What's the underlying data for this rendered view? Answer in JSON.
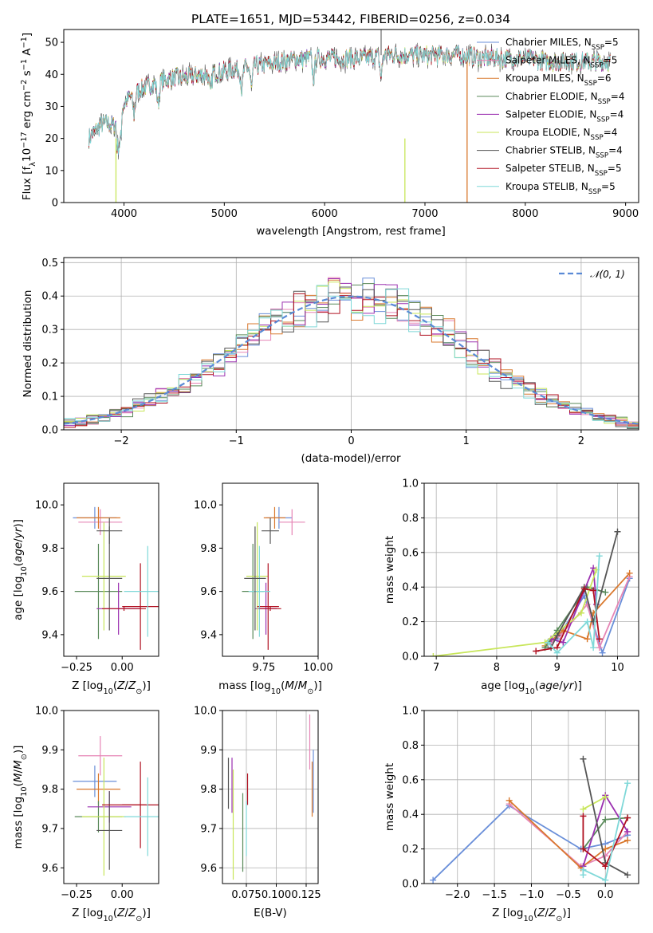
{
  "figure_title": "PLATE=1651, MJD=53442, FIBERID=0256, z=0.034",
  "colors": {
    "Chabrier MILES": "#6a8fd9",
    "Salpeter MILES": "#e685b5",
    "Kroupa MILES": "#d9782d",
    "Chabrier ELODIE": "#5a8a5a",
    "Salpeter ELODIE": "#9b30b0",
    "Kroupa ELODIE": "#c8e65a",
    "Chabrier STELIB": "#555555",
    "Salpeter STELIB": "#b01020",
    "Kroupa STELIB": "#7fd8d8",
    "normal_curve": "#5a8ad6",
    "grid": "#b0b0b0"
  },
  "chart_data": [
    {
      "id": "spectrum",
      "type": "line",
      "title": "PLATE=1651, MJD=53442, FIBERID=0256, z=0.034",
      "xlabel": "wavelength [Angstrom, rest frame]",
      "ylabel": "Flux [fλ10⁻¹⁷ erg cm⁻² s⁻¹ A⁻¹]",
      "xlim": [
        3400,
        9130
      ],
      "ylim": [
        0,
        54
      ],
      "xticks": [
        4000,
        5000,
        6000,
        7000,
        8000,
        9000
      ],
      "yticks": [
        0,
        10,
        20,
        30,
        40,
        50
      ],
      "grid": false,
      "legend_position": "top-right",
      "continuum": {
        "x": [
          3650,
          3700,
          3800,
          3900,
          3950,
          4000,
          4100,
          4200,
          4300,
          4400,
          4500,
          4600,
          4800,
          5000,
          5200,
          5400,
          5600,
          5800,
          6000,
          6200,
          6400,
          6600,
          6800,
          7000,
          7200,
          7400,
          7600,
          7800,
          8000,
          8200,
          8400,
          8600,
          8850
        ],
        "y": [
          20,
          22,
          25,
          24,
          26,
          31,
          34,
          36,
          37,
          38,
          39,
          39,
          40,
          41,
          42,
          43,
          44,
          45,
          45,
          45,
          45,
          46,
          46,
          46,
          46,
          46,
          45,
          45,
          45,
          44,
          44,
          44,
          44
        ]
      },
      "series": [
        {
          "name": "Chabrier MILES, N_SSP=5",
          "label_main": "Chabrier MILES, N",
          "label_sub": "SSP",
          "label_end": "=5"
        },
        {
          "name": "Salpeter MILES, N_SSP=5",
          "label_main": "Salpeter MILES, N",
          "label_sub": "SSP",
          "label_end": "=5"
        },
        {
          "name": "Kroupa MILES, N_SSP=6",
          "label_main": "Kroupa MILES, N",
          "label_sub": "SSP",
          "label_end": "=6"
        },
        {
          "name": "Chabrier ELODIE, N_SSP=4",
          "label_main": "Chabrier ELODIE, N",
          "label_sub": "SSP",
          "label_end": "=4"
        },
        {
          "name": "Salpeter ELODIE, N_SSP=4",
          "label_main": "Salpeter ELODIE, N",
          "label_sub": "SSP",
          "label_end": "=4"
        },
        {
          "name": "Kroupa ELODIE, N_SSP=4",
          "label_main": "Kroupa ELODIE, N",
          "label_sub": "SSP",
          "label_end": "=4"
        },
        {
          "name": "Chabrier STELIB, N_SSP=4",
          "label_main": "Chabrier STELIB, N",
          "label_sub": "SSP",
          "label_end": "=4"
        },
        {
          "name": "Salpeter STELIB, N_SSP=5",
          "label_main": "Salpeter STELIB, N",
          "label_sub": "SSP",
          "label_end": "=5"
        },
        {
          "name": "Kroupa STELIB, N_SSP=5",
          "label_main": "Kroupa STELIB, N",
          "label_sub": "SSP",
          "label_end": "=5"
        }
      ],
      "drops": [
        {
          "series": "Kroupa ELODIE",
          "x": 3920
        },
        {
          "series": "Kroupa ELODIE",
          "x": 6800
        },
        {
          "series": "Kroupa MILES",
          "x": 7420
        }
      ]
    },
    {
      "id": "residuals",
      "type": "histogram",
      "xlabel": "(data-model)/error",
      "ylabel": "Normed distribution",
      "xlim": [
        -2.5,
        2.5
      ],
      "ylim": [
        0,
        0.515
      ],
      "xticks": [
        -2,
        -1,
        0,
        1,
        2
      ],
      "yticks": [
        0.0,
        0.1,
        0.2,
        0.3,
        0.4,
        0.5
      ],
      "grid": true,
      "legend": "𝒩(0, 1)",
      "legend_position": "top-right",
      "bin_width": 0.1,
      "normal_curve": {
        "mean": 0,
        "sigma": 1
      }
    },
    {
      "id": "age-vs-Z",
      "type": "scatter-errorbar",
      "xlabel": "Z [log₁₀(Z/Z⊙)]",
      "ylabel": "age  [log₁₀(age/yr)]",
      "xlim": [
        -0.32,
        0.2
      ],
      "ylim": [
        9.3,
        10.1
      ],
      "xticks": [
        -0.25,
        0.0
      ],
      "yticks": [
        9.4,
        9.6,
        9.8,
        10.0
      ],
      "points": [
        {
          "s": "Chabrier MILES",
          "x": -0.15,
          "xe": 0.12,
          "y": 9.94,
          "ye": 0.05
        },
        {
          "s": "Salpeter MILES",
          "x": -0.12,
          "xe": 0.12,
          "y": 9.92,
          "ye": 0.06
        },
        {
          "s": "Kroupa MILES",
          "x": -0.13,
          "xe": 0.12,
          "y": 9.94,
          "ye": 0.05
        },
        {
          "s": "Chabrier ELODIE",
          "x": -0.13,
          "xe": 0.13,
          "y": 9.6,
          "ye": 0.22
        },
        {
          "s": "Salpeter ELODIE",
          "x": -0.02,
          "xe": 0.12,
          "y": 9.52,
          "ye": 0.12
        },
        {
          "s": "Kroupa ELODIE",
          "x": -0.1,
          "xe": 0.12,
          "y": 9.67,
          "ye": 0.25
        },
        {
          "s": "Chabrier STELIB",
          "x": -0.07,
          "xe": 0.07,
          "y": 9.88,
          "ye": 0.06
        },
        {
          "s": "Salpeter STELIB",
          "x": 0.1,
          "xe": 0.1,
          "y": 9.53,
          "ye": 0.2
        },
        {
          "s": "Kroupa STELIB",
          "x": 0.14,
          "xe": 0.13,
          "y": 9.6,
          "ye": 0.21
        },
        {
          "s": "Chabrier STELIB",
          "x": -0.07,
          "xe": 0.07,
          "y": 9.66,
          "ye": 0.24
        },
        {
          "s": "Salpeter STELIB",
          "x": 0.01,
          "xe": 0.12,
          "y": 9.52,
          "ye": 0.01
        }
      ]
    },
    {
      "id": "age-vs-mass",
      "type": "scatter-errorbar",
      "xlabel": "mass [log₁₀(M/M⊙)]",
      "ylabel": "",
      "xlim": [
        9.56,
        10.0
      ],
      "ylim": [
        9.3,
        10.1
      ],
      "xticks": [
        9.75,
        10.0
      ],
      "yticks": [
        9.4,
        9.6,
        9.8,
        10.0
      ],
      "points": [
        {
          "s": "Chabrier MILES",
          "x": 9.82,
          "xe": 0.06,
          "y": 9.94,
          "ye": 0.05
        },
        {
          "s": "Salpeter MILES",
          "x": 9.88,
          "xe": 0.06,
          "y": 9.92,
          "ye": 0.06
        },
        {
          "s": "Kroupa MILES",
          "x": 9.8,
          "xe": 0.05,
          "y": 9.94,
          "ye": 0.05
        },
        {
          "s": "Chabrier ELODIE",
          "x": 9.7,
          "xe": 0.05,
          "y": 9.6,
          "ye": 0.22
        },
        {
          "s": "Salpeter ELODIE",
          "x": 9.76,
          "xe": 0.05,
          "y": 9.52,
          "ye": 0.12
        },
        {
          "s": "Kroupa ELODIE",
          "x": 9.72,
          "xe": 0.05,
          "y": 9.67,
          "ye": 0.25
        },
        {
          "s": "Chabrier STELIB",
          "x": 9.78,
          "xe": 0.04,
          "y": 9.88,
          "ye": 0.06
        },
        {
          "s": "Salpeter STELIB",
          "x": 9.77,
          "xe": 0.05,
          "y": 9.53,
          "ye": 0.2
        },
        {
          "s": "Kroupa STELIB",
          "x": 9.73,
          "xe": 0.05,
          "y": 9.6,
          "ye": 0.21
        },
        {
          "s": "Chabrier STELIB",
          "x": 9.71,
          "xe": 0.05,
          "y": 9.66,
          "ye": 0.24
        },
        {
          "s": "Salpeter STELIB",
          "x": 9.78,
          "xe": 0.05,
          "y": 9.52,
          "ye": 0.01
        }
      ]
    },
    {
      "id": "weight-vs-age",
      "type": "line",
      "xlabel": "age  [log₁₀(age/yr)]",
      "ylabel": "mass weight",
      "xlim": [
        6.8,
        10.35
      ],
      "ylim": [
        0,
        1.0
      ],
      "xticks": [
        7,
        8,
        9,
        10
      ],
      "yticks": [
        0.0,
        0.2,
        0.4,
        0.6,
        0.8,
        1.0
      ],
      "grid": true,
      "series": [
        {
          "s": "Chabrier MILES",
          "x": [
            8.85,
            9.0,
            9.45,
            9.75,
            10.2
          ],
          "y": [
            0.07,
            0.1,
            0.35,
            0.02,
            0.45
          ]
        },
        {
          "s": "Salpeter MILES",
          "x": [
            8.9,
            9.05,
            9.5,
            9.7,
            10.2
          ],
          "y": [
            0.08,
            0.12,
            0.3,
            0.05,
            0.46
          ]
        },
        {
          "s": "Kroupa MILES",
          "x": [
            8.8,
            9.1,
            9.5,
            9.6,
            10.2
          ],
          "y": [
            0.06,
            0.15,
            0.1,
            0.25,
            0.48
          ]
        },
        {
          "s": "Chabrier ELODIE",
          "x": [
            8.8,
            9.0,
            9.5,
            9.8
          ],
          "y": [
            0.05,
            0.15,
            0.4,
            0.37
          ]
        },
        {
          "s": "Salpeter ELODIE",
          "x": [
            8.9,
            9.1,
            9.6,
            9.65
          ],
          "y": [
            0.1,
            0.08,
            0.51,
            0.3
          ]
        },
        {
          "s": "Kroupa ELODIE",
          "x": [
            6.95,
            8.8,
            9.4,
            9.65
          ],
          "y": [
            0.0,
            0.08,
            0.25,
            0.5
          ]
        },
        {
          "s": "Chabrier STELIB",
          "x": [
            8.9,
            9.0,
            9.45,
            9.6,
            10.0
          ],
          "y": [
            0.05,
            0.12,
            0.4,
            0.2,
            0.72
          ]
        },
        {
          "s": "Salpeter STELIB",
          "x": [
            8.65,
            9.0,
            9.45,
            9.6,
            9.7
          ],
          "y": [
            0.03,
            0.05,
            0.39,
            0.38,
            0.1
          ]
        },
        {
          "s": "Kroupa STELIB",
          "x": [
            8.85,
            9.0,
            9.5,
            9.6,
            9.7
          ],
          "y": [
            0.08,
            0.02,
            0.2,
            0.05,
            0.58
          ]
        }
      ]
    },
    {
      "id": "mass-vs-Z",
      "type": "scatter-errorbar",
      "xlabel": "Z [log₁₀(Z/Z⊙)]",
      "ylabel": "mass [log₁₀(M/M⊙)]",
      "xlim": [
        -0.32,
        0.2
      ],
      "ylim": [
        9.56,
        10.0
      ],
      "xticks": [
        -0.25,
        0.0
      ],
      "yticks": [
        9.6,
        9.7,
        9.8,
        9.9,
        10.0
      ],
      "points": [
        {
          "s": "Chabrier MILES",
          "x": -0.15,
          "xe": 0.12,
          "y": 9.82,
          "ye": 0.04
        },
        {
          "s": "Salpeter MILES",
          "x": -0.12,
          "xe": 0.12,
          "y": 9.885,
          "ye": 0.05
        },
        {
          "s": "Kroupa MILES",
          "x": -0.13,
          "xe": 0.12,
          "y": 9.8,
          "ye": 0.04
        },
        {
          "s": "Chabrier ELODIE",
          "x": -0.13,
          "xe": 0.13,
          "y": 9.73,
          "ye": 0.04
        },
        {
          "s": "Salpeter ELODIE",
          "x": -0.07,
          "xe": 0.12,
          "y": 9.755,
          "ye": 0.04
        },
        {
          "s": "Kroupa ELODIE",
          "x": -0.1,
          "xe": 0.12,
          "y": 9.73,
          "ye": 0.15
        },
        {
          "s": "Chabrier STELIB",
          "x": -0.07,
          "xe": 0.07,
          "y": 9.695,
          "ye": 0.1
        },
        {
          "s": "Salpeter STELIB",
          "x": 0.1,
          "xe": 0.1,
          "y": 9.76,
          "ye": 0.11
        },
        {
          "s": "Kroupa STELIB",
          "x": 0.14,
          "xe": 0.13,
          "y": 9.73,
          "ye": 0.1
        },
        {
          "s": "Salpeter STELIB",
          "x": 0.01,
          "xe": 0.12,
          "y": 9.76,
          "ye": 0.0
        }
      ]
    },
    {
      "id": "mass-vs-ebv",
      "type": "scatter-errorbar",
      "xlabel": "E(B-V)",
      "ylabel": "",
      "xlim": [
        0.055,
        0.135
      ],
      "ylim": [
        9.56,
        10.0
      ],
      "xticks": [
        0.075,
        0.1,
        0.125
      ],
      "ytick_labels": [
        "9.6",
        "9.7",
        "9.8",
        "9.9",
        "10.0"
      ],
      "xtick_labels": [
        "0.075",
        "0.100",
        "0.125"
      ],
      "yticks": [
        9.6,
        9.7,
        9.8,
        9.9,
        10.0
      ],
      "grid": true,
      "points": [
        {
          "s": "Chabrier MILES",
          "x": 0.131,
          "xe": 0.0,
          "y": 9.82,
          "ye": 0.08
        },
        {
          "s": "Salpeter MILES",
          "x": 0.128,
          "xe": 0.0,
          "y": 9.92,
          "ye": 0.07
        },
        {
          "s": "Kroupa MILES",
          "x": 0.13,
          "xe": 0.0,
          "y": 9.8,
          "ye": 0.07
        },
        {
          "s": "Chabrier ELODIE",
          "x": 0.072,
          "xe": 0.0,
          "y": 9.69,
          "ye": 0.1
        },
        {
          "s": "Salpeter ELODIE",
          "x": 0.063,
          "xe": 0.0,
          "y": 9.81,
          "ye": 0.07
        },
        {
          "s": "Kroupa ELODIE",
          "x": 0.064,
          "xe": 0.0,
          "y": 9.71,
          "ye": 0.14
        },
        {
          "s": "Chabrier STELIB",
          "x": 0.06,
          "xe": 0.0,
          "y": 9.815,
          "ye": 0.065
        },
        {
          "s": "Salpeter STELIB",
          "x": 0.076,
          "xe": 0.0,
          "y": 9.8,
          "ye": 0.04
        },
        {
          "s": "Kroupa STELIB",
          "x": 0.075,
          "xe": 0.0,
          "y": 9.7,
          "ye": 0.07
        }
      ]
    },
    {
      "id": "weight-vs-Z",
      "type": "line",
      "xlabel": "Z [log₁₀(Z/Z⊙)]",
      "ylabel": "mass weight",
      "xlim": [
        -2.45,
        0.45
      ],
      "ylim": [
        0,
        1.0
      ],
      "xticks": [
        -2.0,
        -1.5,
        -1.0,
        -0.5,
        0.0
      ],
      "yticks": [
        0.0,
        0.2,
        0.4,
        0.6,
        0.8,
        1.0
      ],
      "grid": true,
      "series": [
        {
          "s": "Chabrier MILES",
          "x": [
            -2.33,
            -1.3,
            -0.33,
            0.0,
            0.3
          ],
          "y": [
            0.02,
            0.45,
            0.2,
            0.23,
            0.28
          ]
        },
        {
          "s": "Salpeter MILES",
          "x": [
            -1.3,
            -0.33,
            0.0,
            0.3
          ],
          "y": [
            0.46,
            0.1,
            0.16,
            0.3
          ]
        },
        {
          "s": "Kroupa MILES",
          "x": [
            -1.3,
            -0.33,
            0.0,
            0.3
          ],
          "y": [
            0.48,
            0.09,
            0.2,
            0.25
          ]
        },
        {
          "s": "Chabrier ELODIE",
          "x": [
            -0.3,
            0.0,
            0.3
          ],
          "y": [
            0.2,
            0.37,
            0.38
          ]
        },
        {
          "s": "Salpeter ELODIE",
          "x": [
            -0.3,
            0.0,
            0.3
          ],
          "y": [
            0.1,
            0.51,
            0.3
          ]
        },
        {
          "s": "Kroupa ELODIE",
          "x": [
            -0.3,
            0.0
          ],
          "y": [
            0.43,
            0.5
          ]
        },
        {
          "s": "Chabrier STELIB",
          "x": [
            -0.3,
            0.0,
            0.3
          ],
          "y": [
            0.72,
            0.12,
            0.05
          ]
        },
        {
          "s": "Salpeter STELIB",
          "x": [
            -0.3,
            -0.3,
            0.0,
            0.3
          ],
          "y": [
            0.39,
            0.2,
            0.1,
            0.38
          ]
        },
        {
          "s": "Kroupa STELIB",
          "x": [
            -0.3,
            -0.3,
            0.0,
            0.3
          ],
          "y": [
            0.05,
            0.08,
            0.02,
            0.58
          ]
        }
      ]
    }
  ]
}
